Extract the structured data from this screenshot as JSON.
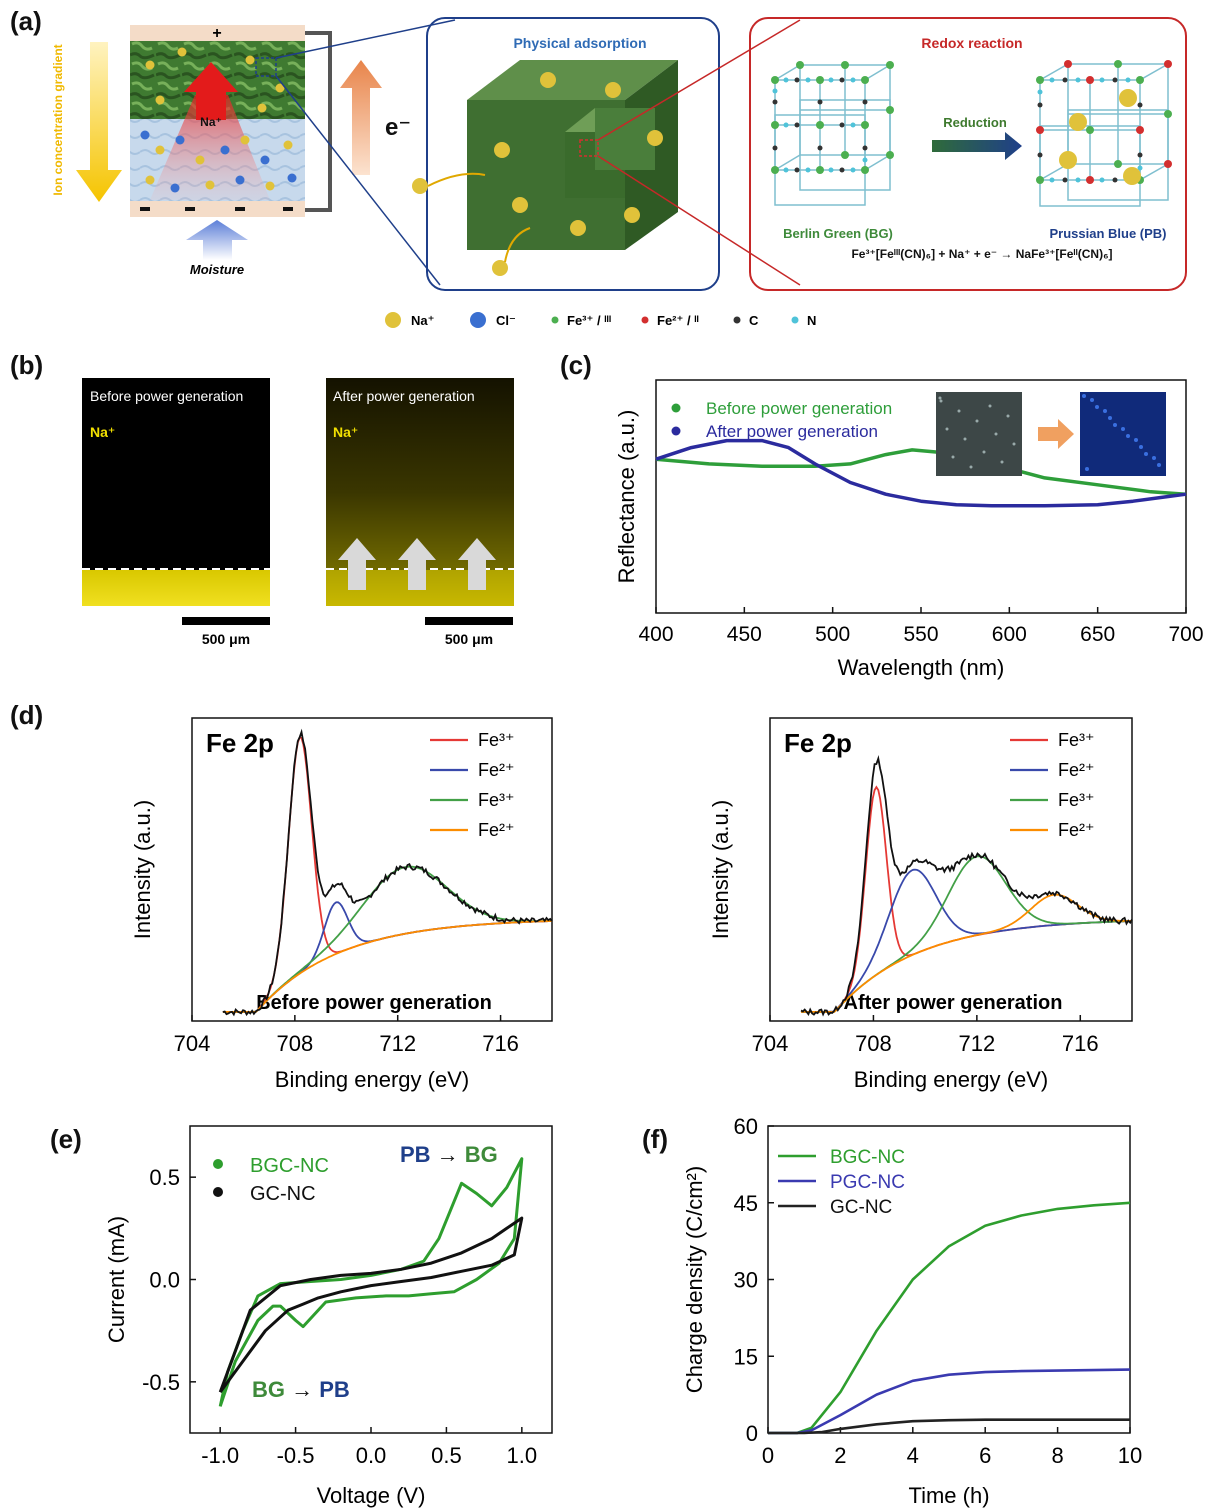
{
  "panel_a": {
    "label": "(a)",
    "ion_gradient_label": "Ion concentration gradient",
    "plus_sign": "+",
    "minus_sign": "-",
    "na_label": "Na⁺",
    "electron_label": "e⁻",
    "moisture_label": "Moisture",
    "physical_adsorption_title": "Physical adsorption",
    "redox_title": "Redox reaction",
    "reduction_label": "Reduction",
    "bg_name": "Berlin Green (BG)",
    "pb_name": "Prussian Blue (PB)",
    "equation": "Fe³⁺[Feᴵᴵᴵ(CN)₆]  +  Na⁺  +  e⁻   →   NaFe³⁺[Feᴵᴵ(CN)₆]",
    "legend": [
      {
        "label": "Na⁺",
        "color": "#e0c23a"
      },
      {
        "label": "Cl⁻",
        "color": "#3a6fd0"
      },
      {
        "label": "Fe³⁺ / ᴵᴵᴵ",
        "color": "#4caf50"
      },
      {
        "label": "Fe²⁺ / ᴵᴵ",
        "color": "#d32f2f"
      },
      {
        "label": "C",
        "color": "#333333"
      },
      {
        "label": "N",
        "color": "#4fc3d9"
      }
    ],
    "colors": {
      "green": "#3a6b2a",
      "blue_frame": "#1f3f8a",
      "red_frame": "#c62828",
      "bg_green": "#3e8a3a",
      "pb_blue": "#1f3f8a"
    }
  },
  "panel_b": {
    "label": "(b)",
    "before_title": "Before power generation",
    "after_title": "After power generation",
    "ion": "Na⁺",
    "scale_label": "500 μm"
  },
  "panel_c": {
    "label": "(c)",
    "chart_data": {
      "type": "line",
      "xlabel": "Wavelength (nm)",
      "ylabel": "Reflectance (a.u.)",
      "xlim": [
        400,
        700
      ],
      "xticks": [
        400,
        450,
        500,
        550,
        600,
        650,
        700
      ],
      "ylim": [
        0,
        1
      ],
      "legend_position": "top-left",
      "series": [
        {
          "name": "Before power generation",
          "color": "#2e9e3a",
          "x": [
            400,
            430,
            460,
            490,
            510,
            530,
            545,
            560,
            580,
            600,
            620,
            650,
            680,
            700
          ],
          "y": [
            0.66,
            0.64,
            0.63,
            0.63,
            0.64,
            0.68,
            0.7,
            0.69,
            0.66,
            0.62,
            0.58,
            0.55,
            0.52,
            0.51
          ]
        },
        {
          "name": "After power generation",
          "color": "#2b2b9e",
          "x": [
            400,
            420,
            440,
            460,
            475,
            490,
            510,
            530,
            550,
            570,
            590,
            620,
            650,
            670,
            690,
            700
          ],
          "y": [
            0.66,
            0.71,
            0.74,
            0.74,
            0.71,
            0.64,
            0.56,
            0.51,
            0.48,
            0.465,
            0.46,
            0.46,
            0.465,
            0.48,
            0.5,
            0.51
          ]
        }
      ]
    }
  },
  "panel_d": {
    "label": "(d)",
    "left": {
      "chart_data": {
        "type": "line",
        "title": "Fe 2p",
        "annotation": "Before power generation",
        "xlabel": "Binding energy (eV)",
        "ylabel": "Intensity (a.u.)",
        "xlim": [
          704,
          718
        ],
        "xticks": [
          704,
          708,
          712,
          716
        ],
        "ylim": [
          0,
          1
        ],
        "legend_position": "top-right",
        "series": [
          {
            "name": "Fe³⁺",
            "color": "#e53935",
            "peaks": [
              {
                "center": 708.2,
                "height": 0.78,
                "width": 0.45
              }
            ]
          },
          {
            "name": "Fe²⁺",
            "color": "#3949ab",
            "peaks": [
              {
                "center": 709.6,
                "height": 0.17,
                "width": 0.45
              }
            ]
          },
          {
            "name": "Fe³⁺",
            "color": "#43a047",
            "peaks": [
              {
                "center": 712.3,
                "height": 0.22,
                "width": 1.6
              }
            ]
          },
          {
            "name": "Fe²⁺",
            "color": "#fb8c00",
            "peaks": []
          }
        ],
        "background": {
          "start": 0.0,
          "end": 0.3
        },
        "envelope_color": "#111111"
      }
    },
    "right": {
      "chart_data": {
        "type": "line",
        "title": "Fe 2p",
        "annotation": "After power generation",
        "xlabel": "Binding energy (eV)",
        "ylabel": "Intensity (a.u.)",
        "xlim": [
          704,
          718
        ],
        "xticks": [
          704,
          708,
          712,
          716
        ],
        "ylim": [
          0,
          1
        ],
        "legend_position": "top-right",
        "series": [
          {
            "name": "Fe³⁺",
            "color": "#e53935",
            "peaks": [
              {
                "center": 708.1,
                "height": 0.62,
                "width": 0.4
              }
            ]
          },
          {
            "name": "Fe²⁺",
            "color": "#3949ab",
            "peaks": [
              {
                "center": 709.5,
                "height": 0.28,
                "width": 0.9
              }
            ]
          },
          {
            "name": "Fe³⁺",
            "color": "#43a047",
            "peaks": [
              {
                "center": 712.0,
                "height": 0.26,
                "width": 1.1
              }
            ]
          },
          {
            "name": "Fe²⁺",
            "color": "#fb8c00",
            "peaks": [
              {
                "center": 715.0,
                "height": 0.1,
                "width": 0.9
              }
            ]
          }
        ],
        "background": {
          "start": 0.0,
          "end": 0.3
        },
        "envelope_color": "#111111"
      }
    }
  },
  "panel_e": {
    "label": "(e)",
    "annot_pb_bg": [
      "PB",
      " → ",
      "BG"
    ],
    "annot_bg_pb": [
      "BG",
      " → ",
      "PB"
    ],
    "chart_data": {
      "type": "line",
      "xlabel": "Voltage (V)",
      "ylabel": "Current (mA)",
      "xlim": [
        -1.2,
        1.2
      ],
      "xticks": [
        "-1.0",
        "-0.5",
        "0.0",
        "0.5",
        "1.0"
      ],
      "ylim": [
        -0.75,
        0.75
      ],
      "yticks": [
        "-0.5",
        "0.0",
        "0.5"
      ],
      "legend_position": "top-left",
      "series": [
        {
          "name": "BGC-NC",
          "color": "#2e9e2e",
          "x": [
            -1.0,
            -0.95,
            -0.85,
            -0.75,
            -0.6,
            -0.4,
            -0.2,
            0.0,
            0.2,
            0.35,
            0.45,
            0.55,
            0.6,
            0.7,
            0.8,
            0.9,
            1.0,
            0.95,
            0.85,
            0.7,
            0.55,
            0.4,
            0.25,
            0.1,
            -0.1,
            -0.3,
            -0.4,
            -0.45,
            -0.5,
            -0.6,
            -0.65,
            -0.75,
            -0.9,
            -1.0
          ],
          "y": [
            -0.62,
            -0.45,
            -0.25,
            -0.08,
            -0.02,
            -0.01,
            0.0,
            0.02,
            0.05,
            0.09,
            0.2,
            0.38,
            0.47,
            0.42,
            0.36,
            0.45,
            0.59,
            0.2,
            0.08,
            0.0,
            -0.06,
            -0.07,
            -0.08,
            -0.08,
            -0.09,
            -0.11,
            -0.19,
            -0.23,
            -0.2,
            -0.13,
            -0.13,
            -0.2,
            -0.4,
            -0.62
          ]
        },
        {
          "name": "GC-NC",
          "color": "#111111",
          "x": [
            -1.0,
            -0.9,
            -0.8,
            -0.6,
            -0.4,
            -0.2,
            0.0,
            0.2,
            0.4,
            0.6,
            0.8,
            0.9,
            1.0,
            0.95,
            0.8,
            0.6,
            0.4,
            0.2,
            0.0,
            -0.2,
            -0.35,
            -0.45,
            -0.55,
            -0.7,
            -0.85,
            -1.0
          ],
          "y": [
            -0.55,
            -0.35,
            -0.15,
            -0.03,
            0.0,
            0.02,
            0.03,
            0.05,
            0.08,
            0.13,
            0.2,
            0.25,
            0.3,
            0.12,
            0.07,
            0.04,
            0.01,
            -0.01,
            -0.03,
            -0.06,
            -0.09,
            -0.12,
            -0.15,
            -0.25,
            -0.4,
            -0.55
          ]
        }
      ]
    }
  },
  "panel_f": {
    "label": "(f)",
    "chart_data": {
      "type": "line",
      "xlabel": "Time (h)",
      "ylabel": "Charge density (C/cm²)",
      "xlim": [
        0,
        10
      ],
      "xticks": [
        0,
        2,
        4,
        6,
        8,
        10
      ],
      "ylim": [
        0,
        60
      ],
      "yticks": [
        0,
        15,
        30,
        45,
        60
      ],
      "legend_position": "top-left",
      "series": [
        {
          "name": "BGC-NC",
          "color": "#2e9e2e",
          "x": [
            0,
            0.8,
            1.2,
            2,
            3,
            4,
            5,
            6,
            7,
            8,
            9,
            10
          ],
          "y": [
            0,
            0,
            1,
            8,
            20,
            30,
            36.5,
            40.5,
            42.5,
            43.8,
            44.5,
            45
          ]
        },
        {
          "name": "PGC-NC",
          "color": "#3a3ab0",
          "x": [
            0,
            0.8,
            1.2,
            2,
            3,
            4,
            5,
            6,
            7,
            8,
            9,
            10
          ],
          "y": [
            0,
            0,
            0.5,
            3.5,
            7.5,
            10.2,
            11.4,
            11.9,
            12.1,
            12.2,
            12.3,
            12.4
          ]
        },
        {
          "name": "GC-NC",
          "color": "#222222",
          "x": [
            0,
            1,
            1.5,
            2,
            3,
            4,
            5,
            6,
            7,
            8,
            9,
            10
          ],
          "y": [
            0,
            0,
            0.2,
            0.8,
            1.7,
            2.3,
            2.5,
            2.6,
            2.6,
            2.6,
            2.6,
            2.6
          ]
        }
      ]
    }
  }
}
